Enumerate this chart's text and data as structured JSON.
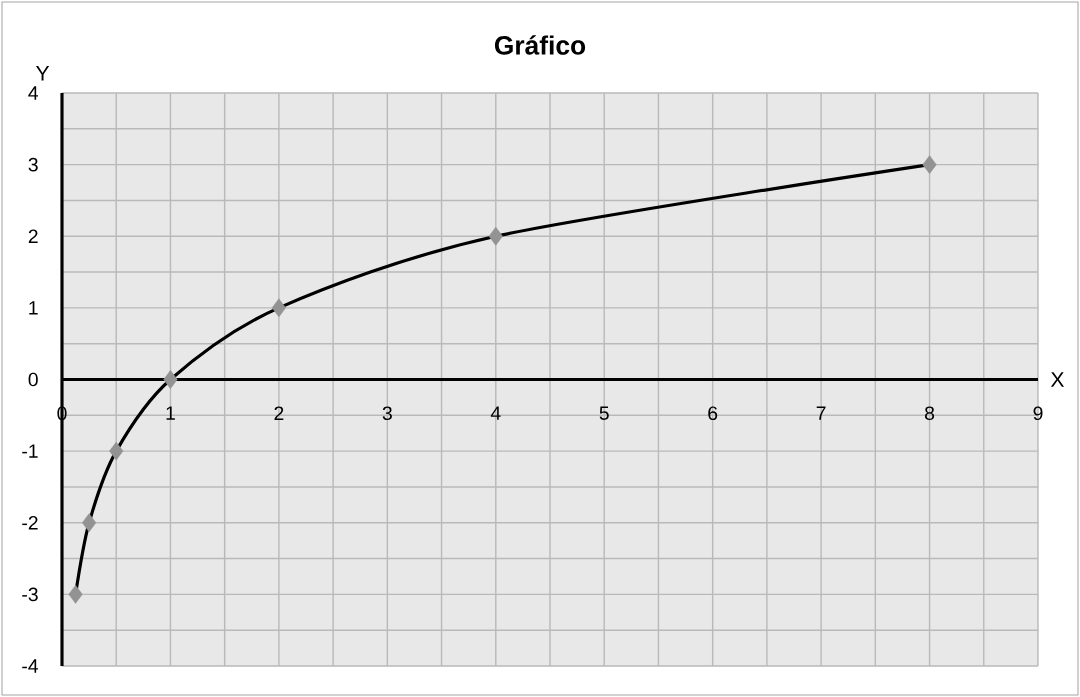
{
  "chart_data": {
    "type": "line",
    "title": "Gráfico",
    "xlabel": "X",
    "ylabel": "Y",
    "x": [
      0.125,
      0.25,
      0.5,
      1,
      2,
      4,
      8
    ],
    "series": [
      {
        "color": "#000000",
        "values": [
          -3,
          -2,
          -1,
          0,
          1,
          2,
          3
        ]
      }
    ],
    "marker": "diamond",
    "line_style": "solid",
    "xlim": [
      0,
      9
    ],
    "ylim": [
      -4,
      4
    ],
    "xticks": [
      0,
      1,
      2,
      3,
      4,
      5,
      6,
      7,
      8,
      9
    ],
    "yticks": [
      -4,
      -3,
      -2,
      -1,
      0,
      1,
      2,
      3,
      4
    ],
    "grid": true,
    "legend": false
  }
}
